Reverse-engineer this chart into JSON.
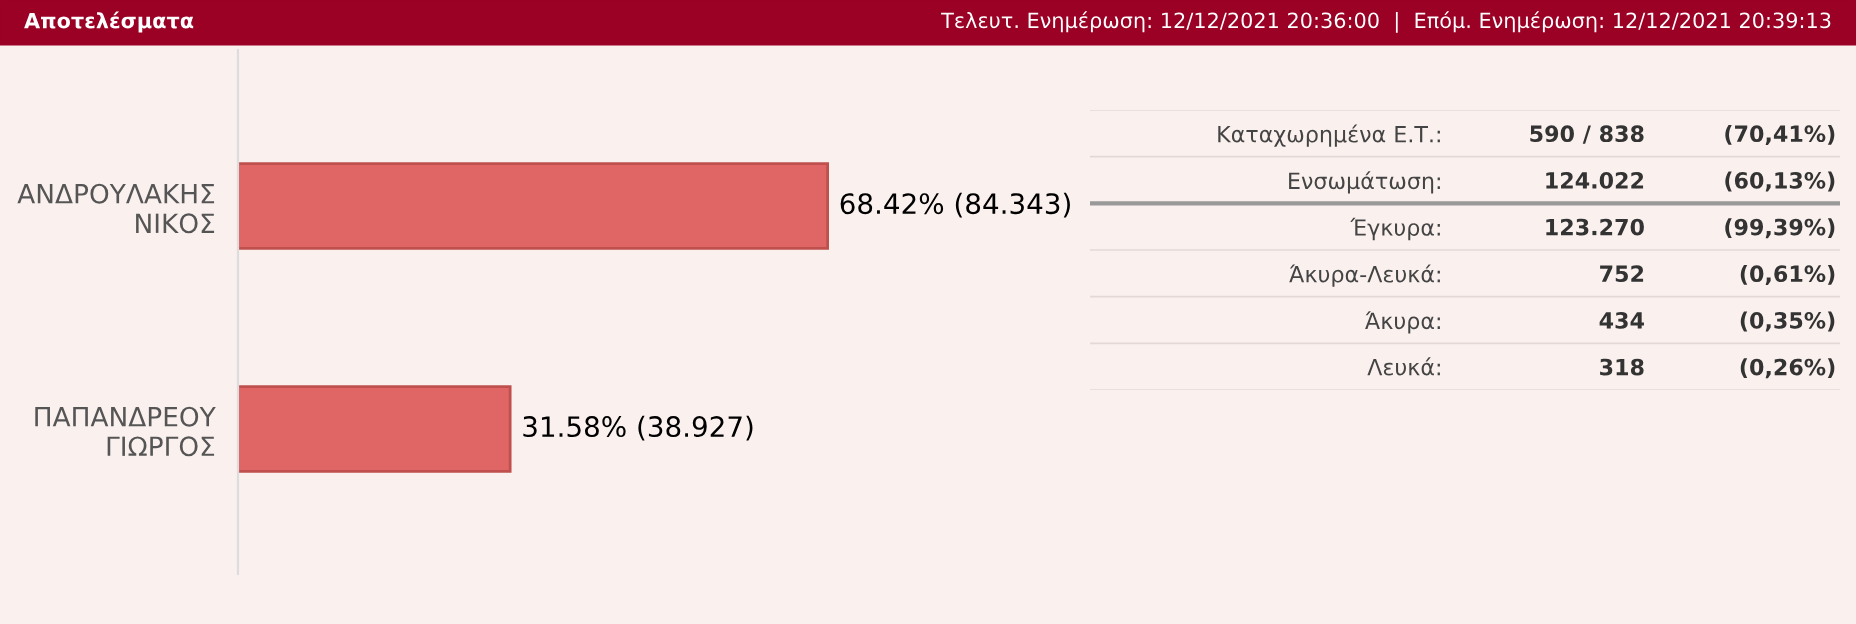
{
  "chart_data": [
    {
      "type": "bar",
      "orientation": "horizontal",
      "title": "Αποτελέσματα",
      "categories": [
        "ΑΝΔΡΟΥΛΑΚΗΣ\nΝΙΚΟΣ",
        "ΠΑΠΑΝΔΡΕΟΥ\nΓΙΩΡΓΟΣ"
      ],
      "values": [
        68.42,
        31.58
      ],
      "color": "#e06666",
      "value_labels": [
        "68.42% (84.343)",
        "31.58% (38.927)"
      ],
      "tick_labels": "y",
      "grid": false,
      "legend": false
    },
    {
      "type": "other",
      "title": "Τελευτ. Ενημέρωση: 12/12/2021 20:36:00  |  Επόμ. Ενημέρωση: 12/12/2021 20:39:13",
      "annotations": [
        "Καταχωρημένα Ε.Τ.:",
        "590 / 838",
        "(70,41%)",
        "Ενσωμάτωση:",
        "124.022",
        "(60,13%)",
        "Έγκυρα:",
        "123.270",
        "(99,39%)",
        "Άκυρα-Λευκά:",
        "752",
        "(0,61%)",
        "Άκυρα:",
        "434",
        "(0,35%)",
        "Λευκά:",
        "318",
        "(0,26%)"
      ]
    }
  ]
}
